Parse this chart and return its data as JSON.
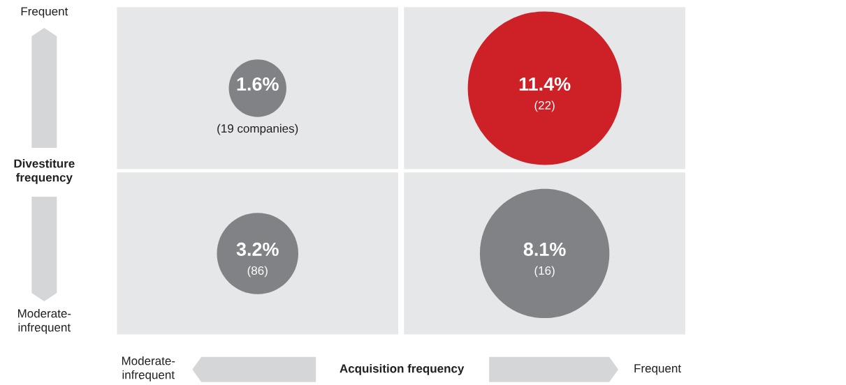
{
  "chart_data": {
    "type": "other",
    "xlabel": "Acquisition frequency",
    "ylabel": "Divestiture frequency",
    "categories": [
      "Moderate-infrequent",
      "Frequent"
    ],
    "y_categories": [
      "Frequent",
      "Moderate-infrequent"
    ],
    "series": [
      {
        "values": [
          1.6,
          11.4
        ],
        "value_labels": [
          "1.6%",
          "11.4%"
        ],
        "colors": [
          "#808285",
          "#cd2027"
        ]
      },
      {
        "values": [
          3.2,
          8.1
        ],
        "value_labels": [
          "3.2%",
          "8.1%"
        ],
        "colors": [
          "#808285",
          "#808285"
        ]
      }
    ],
    "annotations": [
      "(19 companies)",
      "(22)",
      "(86)",
      "(16)"
    ]
  }
}
